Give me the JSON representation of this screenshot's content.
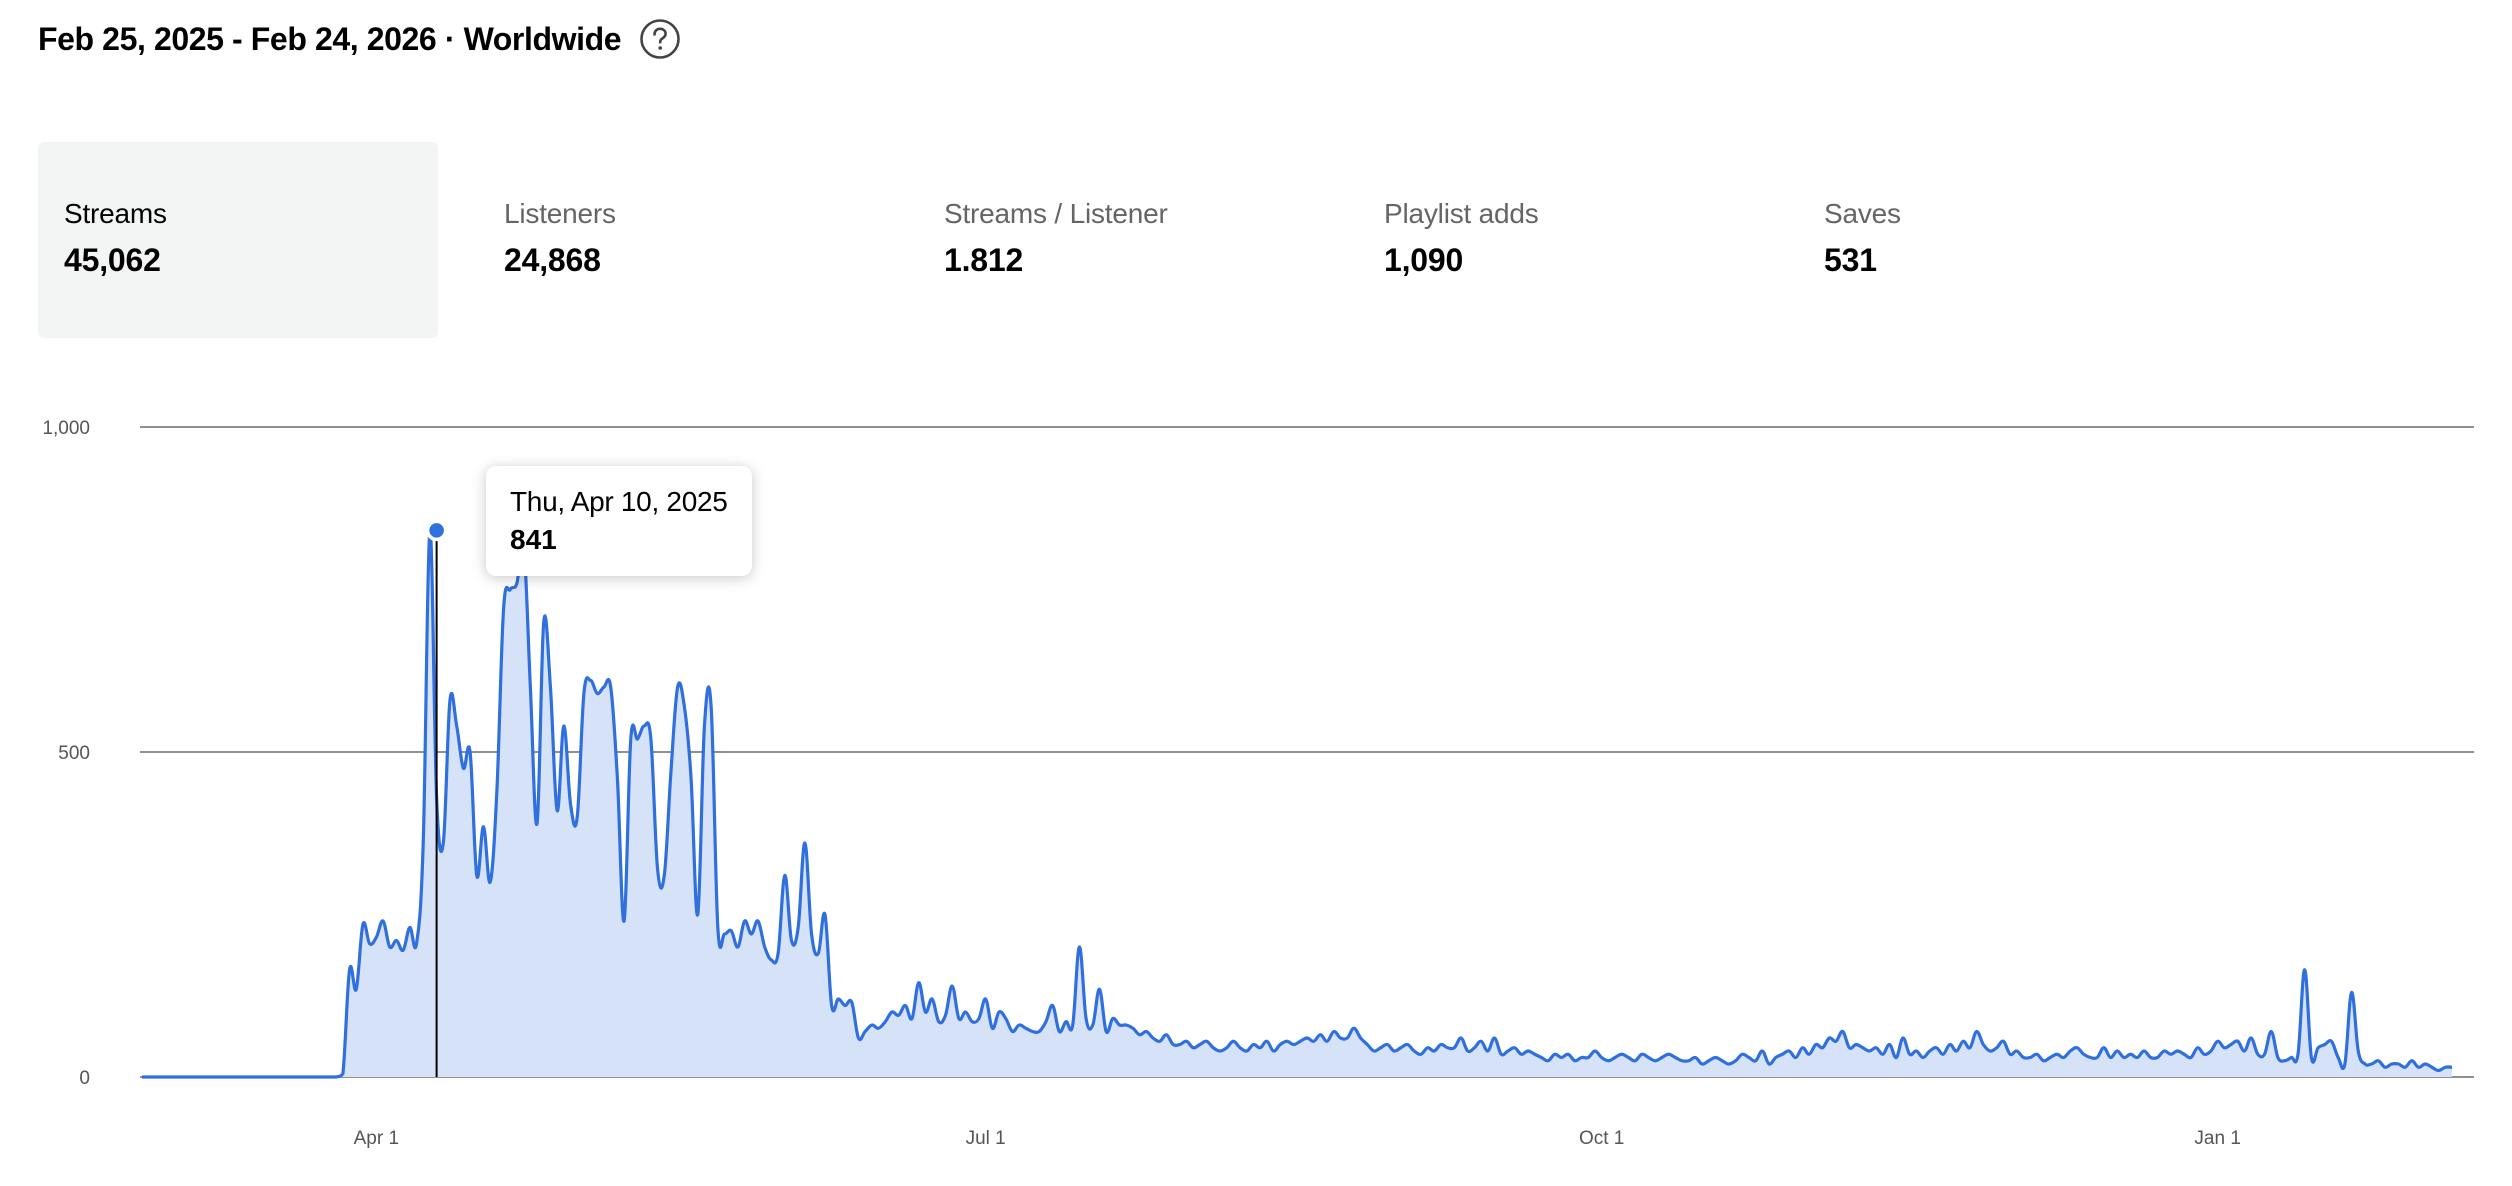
{
  "header": {
    "date_range": "Feb 25, 2025 - Feb 24, 2026 · Worldwide",
    "help_icon": "question-circle-icon"
  },
  "metrics": [
    {
      "label": "Streams",
      "value": "45,062",
      "active": true
    },
    {
      "label": "Listeners",
      "value": "24,868",
      "active": false
    },
    {
      "label": "Streams / Listener",
      "value": "1.812",
      "active": false
    },
    {
      "label": "Playlist adds",
      "value": "1,090",
      "active": false
    },
    {
      "label": "Saves",
      "value": "531",
      "active": false
    }
  ],
  "tooltip": {
    "date": "Thu, Apr 10, 2025",
    "value": "841"
  },
  "colors": {
    "line": "#2f6fde",
    "fill": "#d6e2f8",
    "grid": "#6b6b6b",
    "axis_text": "#555555",
    "active_metric_bg": "#f3f4f4"
  },
  "chart_data": {
    "type": "area",
    "title": "",
    "xlabel": "",
    "ylabel": "",
    "x_start": "2025-02-25",
    "x_end": "2026-02-24",
    "ylim": [
      0,
      1000
    ],
    "y_ticks": [
      {
        "value": 0,
        "label": "0"
      },
      {
        "value": 500,
        "label": "500"
      },
      {
        "value": 1000,
        "label": "1,000"
      }
    ],
    "x_ticks": [
      {
        "date": "2025-04-01",
        "label": "Apr 1"
      },
      {
        "date": "2025-07-01",
        "label": "Jul 1"
      },
      {
        "date": "2025-10-01",
        "label": "Oct 1"
      },
      {
        "date": "2026-01-01",
        "label": "Jan 1"
      }
    ],
    "grid": true,
    "highlight": {
      "date": "2025-04-10",
      "value": 841
    },
    "series": [
      {
        "values": [
          0,
          0,
          0,
          0,
          0,
          0,
          0,
          0,
          0,
          0,
          0,
          0,
          0,
          0,
          0,
          0,
          0,
          0,
          0,
          0,
          0,
          0,
          0,
          0,
          0,
          0,
          0,
          0,
          0,
          0,
          5,
          165,
          135,
          235,
          205,
          215,
          240,
          200,
          210,
          195,
          230,
          205,
          360,
          841,
          430,
          360,
          580,
          540,
          475,
          500,
          310,
          385,
          300,
          440,
          720,
          750,
          760,
          820,
          600,
          390,
          700,
          600,
          410,
          540,
          420,
          400,
          590,
          610,
          590,
          600,
          600,
          460,
          240,
          520,
          520,
          540,
          520,
          320,
          310,
          470,
          600,
          570,
          460,
          250,
          540,
          570,
          230,
          220,
          225,
          200,
          240,
          220,
          240,
          200,
          180,
          190,
          310,
          210,
          230,
          360,
          220,
          190,
          250,
          110,
          120,
          110,
          115,
          60,
          70,
          80,
          75,
          85,
          100,
          95,
          110,
          90,
          145,
          100,
          120,
          85,
          95,
          140,
          90,
          100,
          85,
          90,
          120,
          75,
          100,
          90,
          70,
          80,
          75,
          70,
          70,
          85,
          110,
          70,
          85,
          80,
          200,
          90,
          80,
          135,
          70,
          90,
          80,
          80,
          75,
          65,
          70,
          60,
          55,
          65,
          50,
          50,
          55,
          45,
          50,
          55,
          45,
          40,
          45,
          55,
          45,
          40,
          50,
          45,
          55,
          40,
          50,
          55,
          50,
          55,
          60,
          55,
          65,
          55,
          70,
          60,
          60,
          75,
          60,
          50,
          40,
          45,
          50,
          40,
          45,
          50,
          40,
          35,
          45,
          40,
          50,
          45,
          45,
          60,
          40,
          45,
          55,
          40,
          60,
          35,
          40,
          45,
          35,
          40,
          35,
          30,
          25,
          35,
          30,
          35,
          25,
          30,
          30,
          40,
          30,
          25,
          30,
          35,
          30,
          25,
          35,
          30,
          25,
          30,
          35,
          30,
          25,
          25,
          30,
          20,
          25,
          30,
          25,
          20,
          25,
          35,
          30,
          25,
          40,
          20,
          30,
          35,
          40,
          30,
          45,
          35,
          50,
          45,
          60,
          55,
          70,
          45,
          50,
          45,
          40,
          45,
          35,
          50,
          30,
          60,
          35,
          40,
          30,
          40,
          45,
          35,
          50,
          40,
          55,
          45,
          70,
          50,
          40,
          45,
          55,
          35,
          40,
          30,
          30,
          35,
          25,
          30,
          35,
          30,
          40,
          45,
          35,
          30,
          30,
          45,
          30,
          40,
          30,
          35,
          30,
          40,
          30,
          30,
          40,
          35,
          40,
          35,
          30,
          45,
          35,
          40,
          55,
          45,
          50,
          55,
          40,
          60,
          35,
          35,
          70,
          30,
          25,
          30,
          35,
          165,
          30,
          45,
          50,
          55,
          30,
          20,
          130,
          40,
          20,
          20,
          25,
          15,
          20,
          20,
          15,
          25,
          15,
          20,
          15,
          10,
          15,
          15
        ]
      }
    ]
  }
}
